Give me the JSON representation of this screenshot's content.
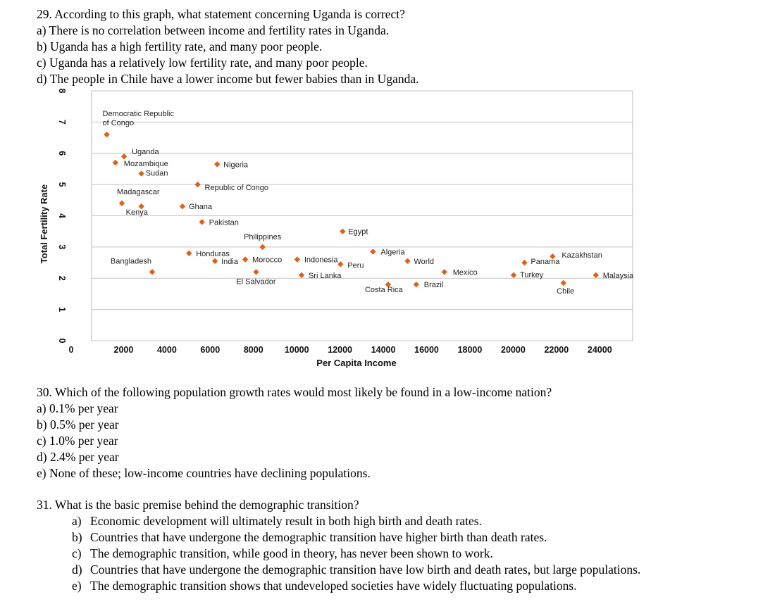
{
  "q29": {
    "question": "29. According to this graph, what statement concerning Uganda is correct?",
    "options": [
      "a) There is no correlation between income and fertility rates in Uganda.",
      "b) Uganda has a high fertility rate, and many poor people.",
      "c) Uganda has a relatively low fertility rate, and many poor people.",
      "d) The people in Chile have a lower income but fewer babies than in Uganda."
    ]
  },
  "q30": {
    "question": "30. Which of the following population growth rates would most likely be found in a low-income nation?",
    "options": [
      "a) 0.1% per year",
      "b) 0.5% per year",
      "c) 1.0% per year",
      "d) 2.4% per year",
      "e) None of these; low-income countries have declining populations."
    ]
  },
  "q31": {
    "question": "31. What is the basic premise behind the demographic transition?",
    "options": [
      {
        "letter": "a)",
        "text": "Economic development will ultimately result in both high birth and death rates."
      },
      {
        "letter": "b)",
        "text": "Countries that have undergone the demographic transition have higher birth than death rates."
      },
      {
        "letter": "c)",
        "text": "The demographic transition, while good in theory, has never been shown to work."
      },
      {
        "letter": "d)",
        "text": "Countries that have undergone the demographic transition have low birth and death rates, but large populations."
      },
      {
        "letter": "e)",
        "text": "The demographic transition shows that undeveloped societies have widely fluctuating populations."
      }
    ]
  },
  "chart_data": {
    "type": "scatter",
    "xlabel": "Per Capita Income",
    "ylabel": "Total Fertility Rate",
    "xlim": [
      0,
      25000
    ],
    "ylim": [
      0,
      8
    ],
    "xticks": [
      0,
      2000,
      4000,
      6000,
      8000,
      10000,
      12000,
      14000,
      16000,
      18000,
      20000,
      22000,
      24000
    ],
    "yticks": [
      0,
      1,
      2,
      3,
      4,
      5,
      6,
      7,
      8
    ],
    "grid": true,
    "marker_color": "#e0601b",
    "points": [
      {
        "label": "Democratic Republic of Congo",
        "x": 700,
        "y": 6.6
      },
      {
        "label": "Uganda",
        "x": 1500,
        "y": 5.9
      },
      {
        "label": "Mozambique",
        "x": 1100,
        "y": 5.7
      },
      {
        "label": "Sudan",
        "x": 2300,
        "y": 5.35
      },
      {
        "label": "Nigeria",
        "x": 5800,
        "y": 5.65
      },
      {
        "label": "Republic of Congo",
        "x": 4900,
        "y": 5.0
      },
      {
        "label": "Madagascar",
        "x": 1400,
        "y": 4.4
      },
      {
        "label": "Kenya",
        "x": 2300,
        "y": 4.3
      },
      {
        "label": "Ghana",
        "x": 4200,
        "y": 4.3
      },
      {
        "label": "Pakistan",
        "x": 5100,
        "y": 3.8
      },
      {
        "label": "Philippines",
        "x": 7900,
        "y": 3.0
      },
      {
        "label": "Egypt",
        "x": 11600,
        "y": 3.5
      },
      {
        "label": "Honduras",
        "x": 4500,
        "y": 2.8
      },
      {
        "label": "India",
        "x": 5700,
        "y": 2.55
      },
      {
        "label": "Bangladesh",
        "x": 2800,
        "y": 2.2
      },
      {
        "label": "Morocco",
        "x": 7100,
        "y": 2.6
      },
      {
        "label": "El Salvador",
        "x": 7600,
        "y": 2.2
      },
      {
        "label": "Indonesia",
        "x": 9500,
        "y": 2.6
      },
      {
        "label": "Sri Lanka",
        "x": 9700,
        "y": 2.1
      },
      {
        "label": "Peru",
        "x": 11500,
        "y": 2.45
      },
      {
        "label": "Algeria",
        "x": 13000,
        "y": 2.85
      },
      {
        "label": "World",
        "x": 14600,
        "y": 2.55
      },
      {
        "label": "Costa Rica",
        "x": 13700,
        "y": 1.8
      },
      {
        "label": "Brazil",
        "x": 15000,
        "y": 1.8
      },
      {
        "label": "Mexico",
        "x": 16300,
        "y": 2.2
      },
      {
        "label": "Panama",
        "x": 20000,
        "y": 2.5
      },
      {
        "label": "Turkey",
        "x": 19500,
        "y": 2.1
      },
      {
        "label": "Kazakhstan",
        "x": 21300,
        "y": 2.7
      },
      {
        "label": "Chile",
        "x": 21800,
        "y": 1.85
      },
      {
        "label": "Malaysia",
        "x": 23300,
        "y": 2.1
      }
    ]
  }
}
